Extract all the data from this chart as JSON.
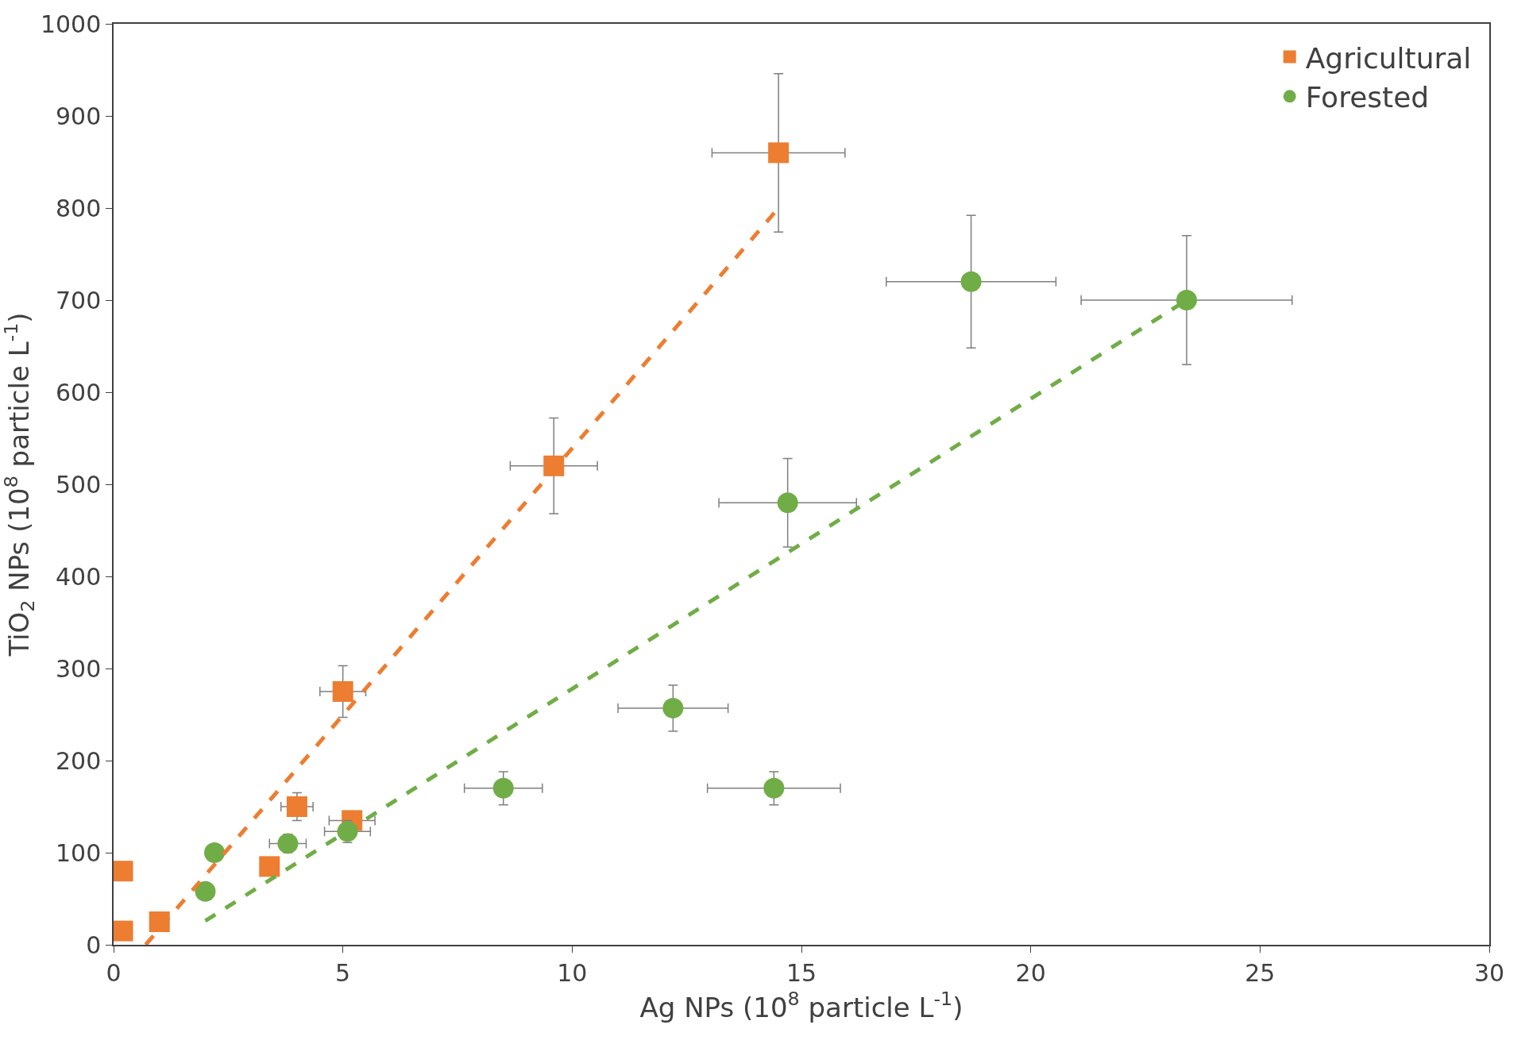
{
  "chart_data": {
    "type": "scatter",
    "xlabel": "Ag NPs (10$^{8}$ particle L$^{-1}$)",
    "ylabel": "TiO$_{2}$ NPs (10$^{8}$ particle L$^{-1}$)",
    "xlim": [
      0,
      30
    ],
    "xticks": [
      0,
      5,
      10,
      15,
      20,
      25,
      30
    ],
    "ylim": [
      0,
      1000
    ],
    "yticks": [
      0,
      100,
      200,
      300,
      400,
      500,
      600,
      700,
      800,
      900,
      1000
    ],
    "legend": "top right",
    "series": [
      {
        "name": "Agricultural",
        "color": "#ed7d31",
        "marker": "square",
        "x": [
          0.2,
          0.2,
          1.0,
          3.4,
          4.0,
          5.0,
          5.2,
          9.6,
          14.5
        ],
        "values": [
          80,
          15,
          25,
          85,
          150,
          275,
          135,
          520,
          860
        ],
        "errors": [
          null,
          null,
          null,
          null,
          15,
          28,
          null,
          52,
          86
        ],
        "xerrors": [
          null,
          null,
          null,
          0.2,
          0.35,
          0.5,
          0.5,
          0.95,
          1.45
        ]
      },
      {
        "name": "Forested",
        "color": "#70ad47",
        "marker": "circle",
        "x": [
          2.0,
          2.2,
          3.8,
          5.1,
          8.5,
          12.2,
          14.4,
          14.7,
          18.7,
          23.4
        ],
        "values": [
          58,
          100,
          110,
          123,
          170,
          257,
          170,
          480,
          720,
          700
        ],
        "errors": [
          null,
          null,
          10,
          12,
          18,
          25,
          18,
          48,
          72,
          70
        ],
        "xerrors": [
          null,
          null,
          0.4,
          0.5,
          0.85,
          1.2,
          1.45,
          1.5,
          1.85,
          2.3
        ]
      },
      {
        "type": "line",
        "color": "#ed7d31",
        "line_style": "dashed",
        "x": [
          0.7,
          14.5
        ],
        "values": [
          0,
          800
        ]
      },
      {
        "type": "line",
        "color": "#70ad47",
        "line_style": "dashed",
        "x": [
          2.0,
          23.4
        ],
        "values": [
          26,
          700
        ]
      }
    ]
  }
}
